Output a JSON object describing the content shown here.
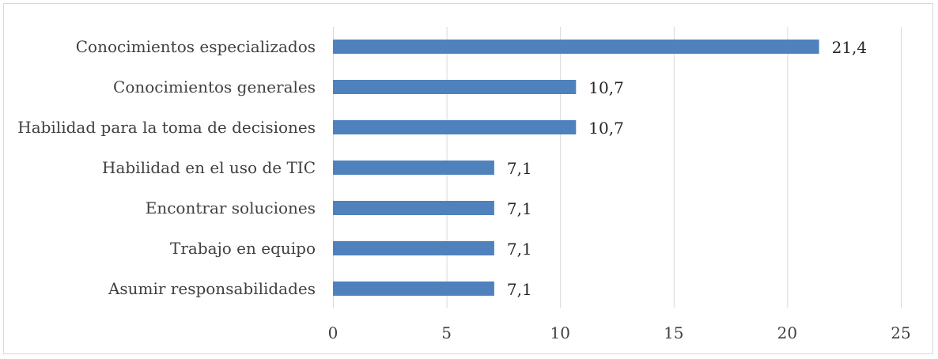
{
  "chart_data": {
    "type": "bar",
    "orientation": "horizontal",
    "categories": [
      "Conocimientos especializados",
      "Conocimientos generales",
      "Habilidad para la toma de decisiones",
      "Habilidad en el uso de TIC",
      "Encontrar soluciones",
      "Trabajo en equipo",
      "Asumir responsabilidades"
    ],
    "values": [
      21.4,
      10.7,
      10.7,
      7.1,
      7.1,
      7.1,
      7.1
    ],
    "data_labels": [
      "21,4",
      "10,7",
      "10,7",
      "7,1",
      "7,1",
      "7,1",
      "7,1"
    ],
    "xlim": [
      0,
      25
    ],
    "xticks": [
      0,
      5,
      10,
      15,
      20,
      25
    ],
    "grid": true,
    "bar_color": "#4f81bd",
    "grid_color": "#d9d9d9",
    "title": "",
    "xlabel": "",
    "ylabel": ""
  }
}
